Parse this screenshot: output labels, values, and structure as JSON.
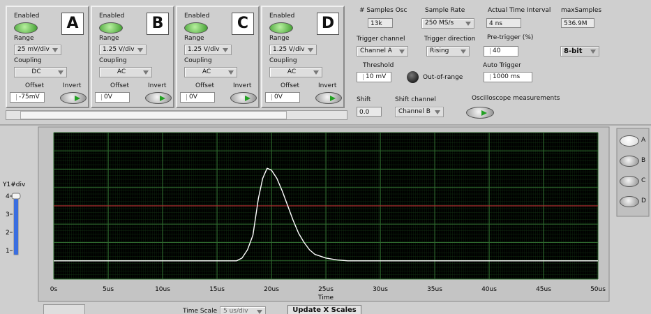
{
  "channels": [
    {
      "enabled": "Enabled",
      "letter": "A",
      "range_label": "Range",
      "range": "25 mV/div",
      "coupling_label": "Coupling",
      "coupling": "DC",
      "offset_label": "Offset",
      "offset": "-75mV",
      "invert_label": "Invert"
    },
    {
      "enabled": "Enabled",
      "letter": "B",
      "range_label": "Range",
      "range": "1.25 V/div",
      "coupling_label": "Coupling",
      "coupling": "AC",
      "offset_label": "Offset",
      "offset": "0V",
      "invert_label": "Invert"
    },
    {
      "enabled": "Enabled",
      "letter": "C",
      "range_label": "Range",
      "range": "1.25 V/div",
      "coupling_label": "Coupling",
      "coupling": "AC",
      "offset_label": "Offset",
      "offset": "0V",
      "invert_label": "Invert"
    },
    {
      "enabled": "Enabled",
      "letter": "D",
      "range_label": "Range",
      "range": "1.25 V/div",
      "coupling_label": "Coupling",
      "coupling": "AC",
      "offset_label": "Offset",
      "offset": "0V",
      "invert_label": "Invert"
    }
  ],
  "settings": {
    "samples_label": "# Samples Osc",
    "samples": "13k",
    "sample_rate_label": "Sample Rate",
    "sample_rate": "250 MS/s",
    "interval_label": "Actual Time Interval",
    "interval": "4 ns",
    "max_samples_label": "maxSamples",
    "max_samples": "536.9M",
    "trigger_channel_label": "Trigger channel",
    "trigger_channel": "Channel A",
    "trigger_direction_label": "Trigger direction",
    "trigger_direction": "Rising",
    "pretrigger_label": "Pre-trigger (%)",
    "pretrigger": "40",
    "resolution": "8-bit",
    "threshold_label": "Threshold",
    "threshold": "10 mV",
    "out_of_range_label": "Out-of-range",
    "auto_trigger_label": "Auto Trigger",
    "auto_trigger": "1000 ms",
    "shift_label": "Shift",
    "shift": "0.0",
    "shift_channel_label": "Shift channel",
    "shift_channel": "Channel B",
    "measurements_label": "Oscilloscope measurements"
  },
  "chart_data": {
    "type": "line",
    "x_label": "Time",
    "xlim": [
      0,
      50
    ],
    "xticks": [
      {
        "value": 0,
        "label": "0s"
      },
      {
        "value": 5,
        "label": "5us"
      },
      {
        "value": 10,
        "label": "10us"
      },
      {
        "value": 15,
        "label": "15us"
      },
      {
        "value": 20,
        "label": "20us"
      },
      {
        "value": 25,
        "label": "25us"
      },
      {
        "value": 30,
        "label": "30us"
      },
      {
        "value": 35,
        "label": "35us"
      },
      {
        "value": 40,
        "label": "40us"
      },
      {
        "value": 45,
        "label": "45us"
      },
      {
        "value": 50,
        "label": "50us"
      }
    ],
    "ylim": [
      -4,
      4
    ],
    "yticks": [
      -4,
      -3,
      -2,
      -1,
      0,
      1,
      2,
      3,
      4
    ],
    "reference_level": 0,
    "reference_color": "#b03030",
    "grid": true,
    "series": [
      {
        "color": "#ffffff",
        "x": [
          0,
          16.8,
          17.3,
          17.8,
          18.3,
          18.8,
          19.2,
          19.6,
          20.0,
          20.5,
          21,
          21.5,
          22,
          22.5,
          23,
          23.5,
          24,
          25,
          26,
          27,
          50
        ],
        "values": [
          -3,
          -3,
          -2.85,
          -2.4,
          -1.6,
          0.4,
          1.5,
          2.05,
          1.95,
          1.5,
          0.8,
          0,
          -0.8,
          -1.5,
          -2.0,
          -2.4,
          -2.65,
          -2.85,
          -2.95,
          -3,
          -3
        ]
      }
    ]
  },
  "slider": {
    "label": "Y1#div",
    "ylim": [
      1,
      4
    ],
    "ticks": [
      1,
      2,
      3,
      4
    ],
    "value": 4
  },
  "channel_buttons": [
    "A",
    "B",
    "C",
    "D"
  ],
  "bottom": {
    "time_scale_label": "Time Scale",
    "time_scale": "5 us/div",
    "update_button": "Update X Scales"
  }
}
